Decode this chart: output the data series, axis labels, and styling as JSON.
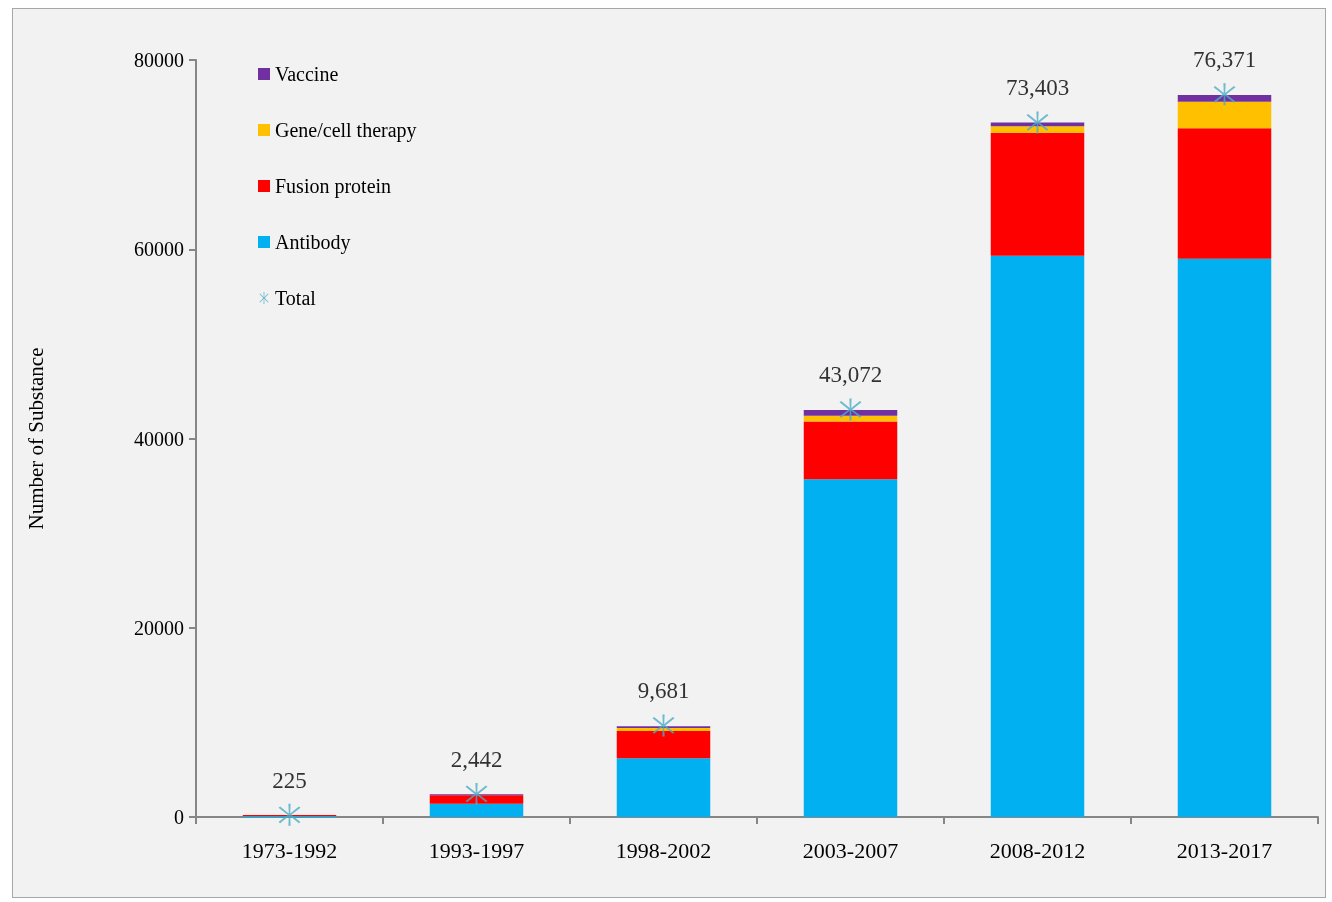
{
  "chart_data": {
    "type": "bar",
    "ylabel": "Number of Substance",
    "categories": [
      "1973-1992",
      "1993-1997",
      "1998-2002",
      "2003-2007",
      "2008-2012",
      "2013-2017"
    ],
    "stacked": true,
    "series": [
      {
        "name": "Antibody",
        "color": "#00b0f0",
        "values": [
          100,
          1400,
          6200,
          35700,
          59300,
          59000
        ]
      },
      {
        "name": "Fusion protein",
        "color": "#ff0000",
        "values": [
          100,
          900,
          2900,
          6100,
          13000,
          13800
        ]
      },
      {
        "name": "Gene/cell therapy",
        "color": "#ffc000",
        "values": [
          0,
          0,
          300,
          600,
          700,
          2800
        ]
      },
      {
        "name": "Vaccine",
        "color": "#7030a0",
        "values": [
          0,
          100,
          200,
          600,
          400,
          700
        ]
      },
      {
        "name": "Total",
        "type": "scatter",
        "color": "#4bacc6",
        "x": [
          "1973-1992",
          "1993-1997",
          "1998-2002",
          "2003-2007",
          "2008-2012",
          "2013-2017"
        ],
        "values": [
          225,
          2442,
          9681,
          43072,
          73403,
          76371
        ],
        "value_labels": [
          "225",
          "2,442",
          "9,681",
          "43,072",
          "73,403",
          "76,371"
        ]
      }
    ],
    "ylim": [
      0,
      80000
    ],
    "yticks": [
      0,
      20000,
      40000,
      60000,
      80000
    ],
    "grid": false,
    "legend": "top left",
    "marker": "star"
  }
}
